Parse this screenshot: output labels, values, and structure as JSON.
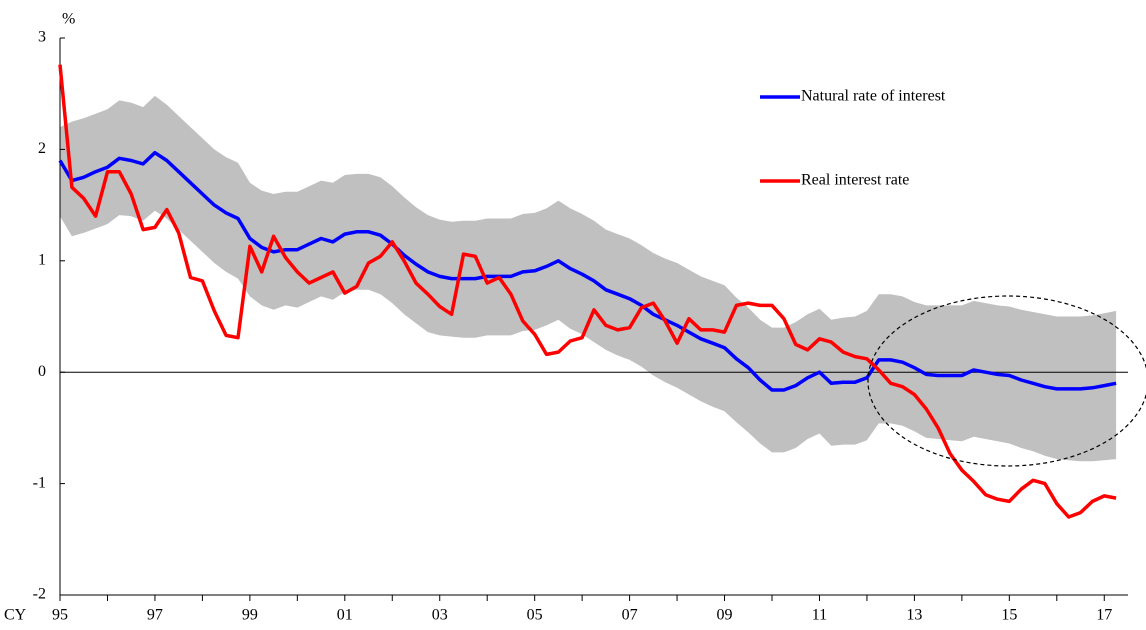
{
  "chart_data": {
    "type": "line",
    "y_unit": "%",
    "x_prefix": "CY",
    "x": [
      1995,
      1995.25,
      1995.5,
      1995.75,
      1996,
      1996.25,
      1996.5,
      1996.75,
      1997,
      1997.25,
      1997.5,
      1997.75,
      1998,
      1998.25,
      1998.5,
      1998.75,
      1999,
      1999.25,
      1999.5,
      1999.75,
      2000,
      2000.25,
      2000.5,
      2000.75,
      2001,
      2001.25,
      2001.5,
      2001.75,
      2002,
      2002.25,
      2002.5,
      2002.75,
      2003,
      2003.25,
      2003.5,
      2003.75,
      2004,
      2004.25,
      2004.5,
      2004.75,
      2005,
      2005.25,
      2005.5,
      2005.75,
      2006,
      2006.25,
      2006.5,
      2006.75,
      2007,
      2007.25,
      2007.5,
      2007.75,
      2008,
      2008.25,
      2008.5,
      2008.75,
      2009,
      2009.25,
      2009.5,
      2009.75,
      2010,
      2010.25,
      2010.5,
      2010.75,
      2011,
      2011.25,
      2011.5,
      2011.75,
      2012,
      2012.25,
      2012.5,
      2012.75,
      2013,
      2013.25,
      2013.5,
      2013.75,
      2014,
      2014.25,
      2014.5,
      2014.75,
      2015,
      2015.25,
      2015.5,
      2015.75,
      2016,
      2016.25,
      2016.5,
      2016.75,
      2017,
      2017.25
    ],
    "series": [
      {
        "name": "Natural rate of interest",
        "color": "#0000ff",
        "values": [
          1.9,
          1.72,
          1.75,
          1.8,
          1.84,
          1.92,
          1.9,
          1.87,
          1.97,
          1.9,
          1.8,
          1.7,
          1.6,
          1.5,
          1.43,
          1.38,
          1.2,
          1.12,
          1.08,
          1.1,
          1.1,
          1.15,
          1.2,
          1.17,
          1.24,
          1.26,
          1.26,
          1.23,
          1.15,
          1.05,
          0.97,
          0.9,
          0.86,
          0.84,
          0.84,
          0.84,
          0.86,
          0.86,
          0.86,
          0.9,
          0.91,
          0.95,
          1.0,
          0.93,
          0.88,
          0.82,
          0.74,
          0.7,
          0.66,
          0.6,
          0.52,
          0.47,
          0.42,
          0.36,
          0.3,
          0.26,
          0.22,
          0.12,
          0.04,
          -0.07,
          -0.16,
          -0.16,
          -0.12,
          -0.05,
          0.0,
          -0.1,
          -0.09,
          -0.09,
          -0.05,
          0.11,
          0.11,
          0.09,
          0.04,
          -0.02,
          -0.03,
          -0.03,
          -0.03,
          0.02,
          0.0,
          -0.02,
          -0.03,
          -0.07,
          -0.1,
          -0.13,
          -0.15,
          -0.15,
          -0.15,
          -0.14,
          -0.12,
          -0.1
        ]
      },
      {
        "name": "Real interest rate",
        "color": "#ff0000",
        "values": [
          2.76,
          1.66,
          1.56,
          1.4,
          1.8,
          1.8,
          1.6,
          1.28,
          1.3,
          1.46,
          1.25,
          0.85,
          0.82,
          0.55,
          0.33,
          0.31,
          1.13,
          0.9,
          1.22,
          1.03,
          0.9,
          0.8,
          0.85,
          0.9,
          0.71,
          0.77,
          0.98,
          1.04,
          1.17,
          1.0,
          0.8,
          0.7,
          0.59,
          0.52,
          1.06,
          1.04,
          0.8,
          0.85,
          0.7,
          0.46,
          0.34,
          0.16,
          0.18,
          0.28,
          0.31,
          0.56,
          0.42,
          0.38,
          0.4,
          0.58,
          0.62,
          0.46,
          0.26,
          0.48,
          0.38,
          0.38,
          0.36,
          0.6,
          0.62,
          0.6,
          0.6,
          0.48,
          0.25,
          0.2,
          0.3,
          0.27,
          0.18,
          0.14,
          0.12,
          0.02,
          -0.1,
          -0.13,
          -0.2,
          -0.33,
          -0.5,
          -0.73,
          -0.88,
          -0.98,
          -1.1,
          -1.14,
          -1.16,
          -1.05,
          -0.97,
          -1.0,
          -1.18,
          -1.3,
          -1.26,
          -1.16,
          -1.11,
          -1.13
        ]
      }
    ],
    "band": {
      "color": "#c0c0c0",
      "upper": [
        2.2,
        2.25,
        2.28,
        2.32,
        2.36,
        2.44,
        2.42,
        2.38,
        2.48,
        2.4,
        2.3,
        2.2,
        2.1,
        2.0,
        1.93,
        1.88,
        1.7,
        1.63,
        1.6,
        1.62,
        1.62,
        1.67,
        1.72,
        1.7,
        1.77,
        1.78,
        1.78,
        1.75,
        1.67,
        1.57,
        1.48,
        1.41,
        1.37,
        1.35,
        1.36,
        1.36,
        1.38,
        1.38,
        1.38,
        1.42,
        1.43,
        1.47,
        1.54,
        1.47,
        1.42,
        1.36,
        1.28,
        1.24,
        1.2,
        1.14,
        1.07,
        1.02,
        0.98,
        0.92,
        0.86,
        0.82,
        0.78,
        0.67,
        0.58,
        0.47,
        0.4,
        0.4,
        0.45,
        0.52,
        0.57,
        0.47,
        0.49,
        0.5,
        0.55,
        0.7,
        0.7,
        0.68,
        0.63,
        0.6,
        0.6,
        0.6,
        0.6,
        0.64,
        0.62,
        0.6,
        0.59,
        0.56,
        0.54,
        0.52,
        0.5,
        0.5,
        0.5,
        0.51,
        0.53,
        0.55
      ],
      "lower": [
        1.4,
        1.22,
        1.25,
        1.29,
        1.33,
        1.41,
        1.4,
        1.36,
        1.45,
        1.38,
        1.28,
        1.18,
        1.08,
        0.98,
        0.9,
        0.84,
        0.68,
        0.6,
        0.56,
        0.6,
        0.58,
        0.63,
        0.68,
        0.65,
        0.72,
        0.74,
        0.74,
        0.7,
        0.62,
        0.52,
        0.44,
        0.36,
        0.33,
        0.32,
        0.31,
        0.31,
        0.33,
        0.33,
        0.33,
        0.37,
        0.38,
        0.42,
        0.47,
        0.39,
        0.34,
        0.27,
        0.2,
        0.15,
        0.11,
        0.05,
        -0.03,
        -0.09,
        -0.14,
        -0.2,
        -0.26,
        -0.31,
        -0.35,
        -0.45,
        -0.54,
        -0.64,
        -0.72,
        -0.72,
        -0.68,
        -0.6,
        -0.55,
        -0.66,
        -0.65,
        -0.65,
        -0.61,
        -0.46,
        -0.46,
        -0.48,
        -0.53,
        -0.59,
        -0.6,
        -0.61,
        -0.62,
        -0.58,
        -0.6,
        -0.62,
        -0.64,
        -0.68,
        -0.71,
        -0.75,
        -0.78,
        -0.79,
        -0.8,
        -0.8,
        -0.79,
        -0.78
      ]
    },
    "xlim": [
      1995,
      2017.5
    ],
    "xticks": [
      {
        "value": 1995,
        "label": "95"
      },
      {
        "value": 1997,
        "label": "97"
      },
      {
        "value": 1999,
        "label": "99"
      },
      {
        "value": 2001,
        "label": "01"
      },
      {
        "value": 2003,
        "label": "03"
      },
      {
        "value": 2005,
        "label": "05"
      },
      {
        "value": 2007,
        "label": "07"
      },
      {
        "value": 2009,
        "label": "09"
      },
      {
        "value": 2011,
        "label": "11"
      },
      {
        "value": 2013,
        "label": "13"
      },
      {
        "value": 2015,
        "label": "15"
      },
      {
        "value": 2017,
        "label": "17"
      }
    ],
    "xminorticks": [
      1996,
      1998,
      2000,
      2002,
      2004,
      2006,
      2008,
      2010,
      2012,
      2014,
      2016
    ],
    "ylim": [
      -2,
      3
    ],
    "yticks": [
      -2,
      -1,
      0,
      1,
      2,
      3
    ],
    "zero_line": true,
    "grid": false
  }
}
